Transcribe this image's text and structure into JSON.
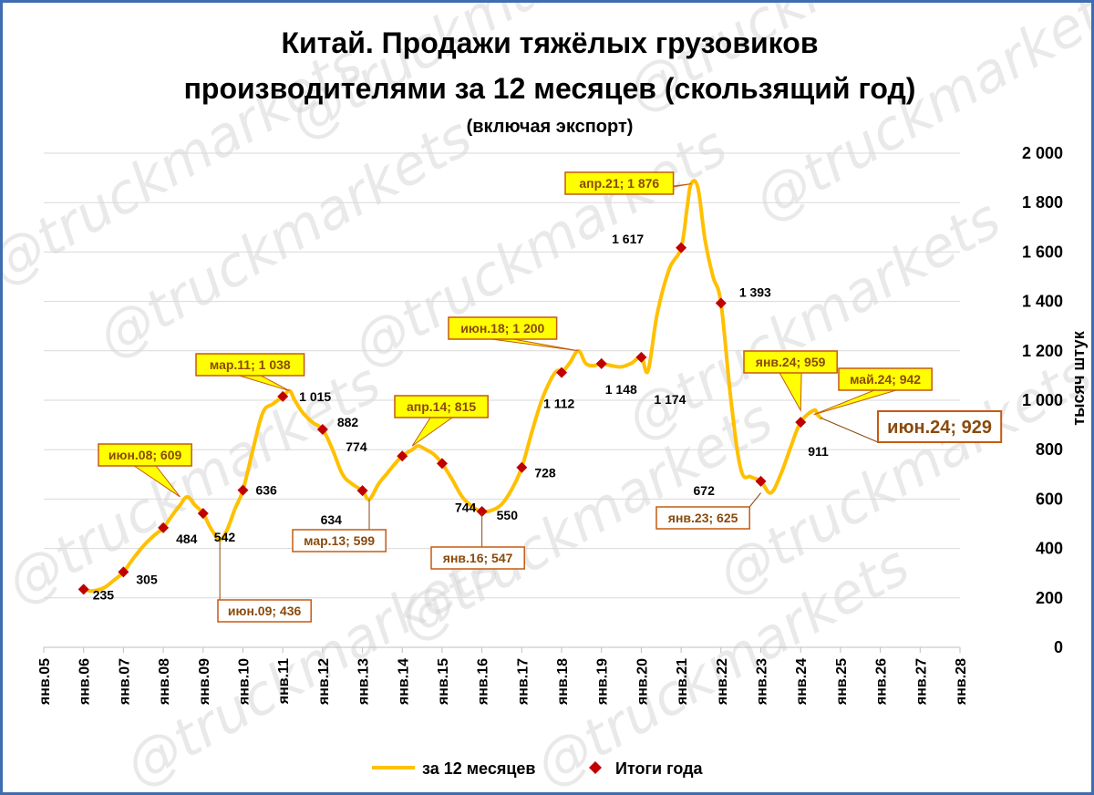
{
  "watermark": "@truckmarkets",
  "chart_data": {
    "type": "line",
    "title_line1": "Китай. Продажи тяжёлых грузовиков",
    "title_line2": "производителями за 12 месяцев (скользящий год)",
    "subtitle": "(включая экспорт)",
    "ylabel": "тысяч штук",
    "ylim": [
      0,
      2000
    ],
    "yticks": [
      "0",
      "200",
      "400",
      "600",
      "800",
      "1 000",
      "1 200",
      "1 400",
      "1 600",
      "1 800",
      "2 000"
    ],
    "ytick_values": [
      0,
      200,
      400,
      600,
      800,
      1000,
      1200,
      1400,
      1600,
      1800,
      2000
    ],
    "xticks": [
      "янв.05",
      "янв.06",
      "янв.07",
      "янв.08",
      "янв.09",
      "янв.10",
      "янв.11",
      "янв.12",
      "янв.13",
      "янв.14",
      "янв.15",
      "янв.16",
      "янв.17",
      "янв.18",
      "янв.19",
      "янв.20",
      "янв.21",
      "янв.22",
      "янв.23",
      "янв.24",
      "янв.25",
      "янв.26",
      "янв.27",
      "янв.28"
    ],
    "xlim": [
      2005.0,
      2028.0
    ],
    "grid": true,
    "legend_position": "bottom",
    "series": [
      {
        "name": "за 12 месяцев",
        "color": "#ffc000",
        "x": [
          2006.0,
          2006.2,
          2006.5,
          2006.75,
          2007.0,
          2007.25,
          2007.5,
          2007.75,
          2008.0,
          2008.25,
          2008.42,
          2008.6,
          2008.8,
          2009.0,
          2009.2,
          2009.42,
          2009.6,
          2009.8,
          2010.0,
          2010.25,
          2010.5,
          2010.75,
          2011.0,
          2011.17,
          2011.3,
          2011.5,
          2011.75,
          2012.0,
          2012.25,
          2012.5,
          2012.75,
          2013.0,
          2013.17,
          2013.4,
          2013.6,
          2013.8,
          2014.0,
          2014.25,
          2014.4,
          2014.6,
          2014.8,
          2015.0,
          2015.25,
          2015.5,
          2015.75,
          2016.0,
          2016.25,
          2016.5,
          2016.75,
          2017.0,
          2017.25,
          2017.5,
          2017.75,
          2017.9,
          2018.0,
          2018.2,
          2018.42,
          2018.6,
          2018.8,
          2019.0,
          2019.25,
          2019.5,
          2019.75,
          2020.0,
          2020.17,
          2020.4,
          2020.7,
          2021.0,
          2021.15,
          2021.25,
          2021.42,
          2021.6,
          2021.8,
          2022.0,
          2022.25,
          2022.5,
          2022.75,
          2023.0,
          2023.25,
          2023.5,
          2023.75,
          2024.0,
          2024.33,
          2024.42
        ],
        "values": [
          235,
          228,
          240,
          270,
          305,
          360,
          410,
          450,
          484,
          540,
          575,
          609,
          575,
          542,
          480,
          436,
          475,
          560,
          636,
          800,
          950,
          985,
          1015,
          1038,
          1000,
          950,
          910,
          882,
          800,
          700,
          660,
          634,
          599,
          660,
          700,
          740,
          774,
          800,
          815,
          800,
          780,
          744,
          680,
          610,
          570,
          550,
          555,
          580,
          640,
          728,
          870,
          1000,
          1090,
          1120,
          1112,
          1150,
          1200,
          1150,
          1140,
          1148,
          1140,
          1135,
          1150,
          1174,
          1120,
          1350,
          1530,
          1617,
          1780,
          1876,
          1860,
          1650,
          1500,
          1393,
          1000,
          720,
          690,
          672,
          625,
          700,
          810,
          911,
          959,
          942
        ]
      },
      {
        "name": "Итоги года",
        "color": "#c00000",
        "x": [
          2006,
          2007,
          2008,
          2009,
          2010,
          2011,
          2012,
          2013,
          2014,
          2015,
          2016,
          2017,
          2018,
          2019,
          2020,
          2021,
          2022,
          2023,
          2024
        ],
        "values": [
          235,
          305,
          484,
          542,
          636,
          1015,
          882,
          634,
          774,
          744,
          550,
          728,
          1112,
          1148,
          1174,
          1617,
          1393,
          672,
          911
        ]
      }
    ],
    "last_point": {
      "x": 2024.5,
      "value": 929
    },
    "point_labels": [
      "235",
      "305",
      "484",
      "542",
      "636",
      "1 015",
      "882",
      "634",
      "774",
      "744",
      "550",
      "728",
      "1 112",
      "1 148",
      "1 174",
      "1 617",
      "1 393",
      "672",
      "911"
    ],
    "callouts": [
      {
        "text": "июн.08; 609",
        "x": 2008.42,
        "value": 609,
        "style": "yellow"
      },
      {
        "text": "июн.09; 436",
        "x": 2009.42,
        "value": 436,
        "style": "outline"
      },
      {
        "text": "мар.11; 1 038",
        "x": 2011.17,
        "value": 1038,
        "style": "yellow"
      },
      {
        "text": "мар.13; 599",
        "x": 2013.17,
        "value": 599,
        "style": "outline"
      },
      {
        "text": "апр.14; 815",
        "x": 2014.25,
        "value": 815,
        "style": "yellow"
      },
      {
        "text": "янв.16; 547",
        "x": 2016.0,
        "value": 547,
        "style": "outline"
      },
      {
        "text": "июн.18; 1 200",
        "x": 2018.42,
        "value": 1200,
        "style": "yellow"
      },
      {
        "text": "апр.21; 1 876",
        "x": 2021.25,
        "value": 1876,
        "style": "yellow"
      },
      {
        "text": "янв.23; 625",
        "x": 2023.0,
        "value": 625,
        "style": "outline"
      },
      {
        "text": "янв.24; 959",
        "x": 2024.0,
        "value": 959,
        "style": "yellow"
      },
      {
        "text": "май.24; 942",
        "x": 2024.33,
        "value": 942,
        "style": "yellow"
      },
      {
        "text": "июн.24; 929",
        "x": 2024.5,
        "value": 929,
        "style": "outline-large"
      }
    ]
  }
}
